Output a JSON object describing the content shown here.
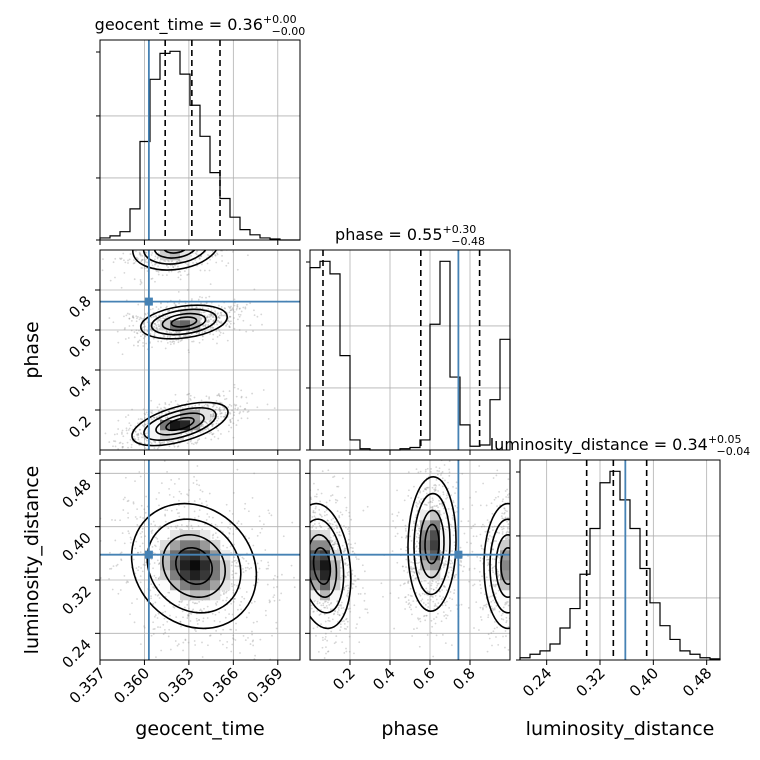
{
  "chart_data": {
    "type": "corner",
    "parameters": [
      {
        "name": "geocent_time",
        "xlabel": "geocent_time",
        "ticks": [
          "0.357",
          "0.360",
          "0.363",
          "0.366",
          "0.369"
        ],
        "tick_values": [
          0.357,
          0.36,
          0.363,
          0.366,
          0.369
        ],
        "range": [
          0.357,
          0.3705
        ],
        "truth": 0.3603,
        "quantiles": [
          0.3614,
          0.3632,
          0.3651
        ],
        "title": {
          "main": "geocent_time = 0.36",
          "sup": "+0.00",
          "sub": "−0.00"
        },
        "hist": [
          2,
          4,
          8,
          30,
          95,
          155,
          180,
          182,
          160,
          130,
          100,
          65,
          40,
          22,
          10,
          5,
          2,
          1,
          0,
          0
        ]
      },
      {
        "name": "phase",
        "xlabel": "phase",
        "ylabel": "phase",
        "ticks": [
          "0.2",
          "0.4",
          "0.6",
          "0.8"
        ],
        "tick_values": [
          0.2,
          0.4,
          0.6,
          0.8
        ],
        "range": [
          0.0,
          1.0
        ],
        "truth": 0.742,
        "quantiles": [
          0.065,
          0.554,
          0.848
        ],
        "title": {
          "main": "phase = 0.55",
          "sup": "+0.30",
          "sub": "−0.48"
        },
        "hist": [
          145,
          150,
          140,
          75,
          8,
          1,
          0,
          0,
          0,
          1,
          2,
          8,
          100,
          150,
          58,
          20,
          3,
          4,
          40,
          88
        ]
      },
      {
        "name": "luminosity_distance",
        "xlabel": "luminosity_distance",
        "ylabel": "luminosity_distance",
        "ticks": [
          "0.24",
          "0.32",
          "0.40",
          "0.48"
        ],
        "tick_values": [
          0.24,
          0.32,
          0.4,
          0.48
        ],
        "range": [
          0.2,
          0.5
        ],
        "truth": 0.358,
        "quantiles": [
          0.3,
          0.34,
          0.39
        ],
        "title": {
          "main": "luminosity_distance = 0.34",
          "sup": "+0.05",
          "sub": "−0.04"
        },
        "hist": [
          2,
          5,
          8,
          14,
          28,
          45,
          75,
          115,
          155,
          165,
          140,
          115,
          80,
          50,
          30,
          18,
          8,
          5,
          2,
          1
        ]
      }
    ],
    "grid": true,
    "truth_color": "#4682b4"
  }
}
